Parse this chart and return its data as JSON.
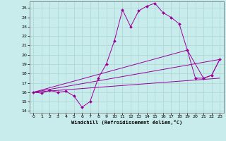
{
  "title": "",
  "xlabel": "Windchill (Refroidissement éolien,°C)",
  "bg_color": "#c8ecec",
  "line_color": "#990099",
  "grid_color": "#aad4d4",
  "xlim": [
    -0.5,
    23.5
  ],
  "ylim": [
    13.8,
    25.7
  ],
  "yticks": [
    14,
    15,
    16,
    17,
    18,
    19,
    20,
    21,
    22,
    23,
    24,
    25
  ],
  "xticks": [
    0,
    1,
    2,
    3,
    4,
    5,
    6,
    7,
    8,
    9,
    10,
    11,
    12,
    13,
    14,
    15,
    16,
    17,
    18,
    19,
    20,
    21,
    22,
    23
  ],
  "line1_x": [
    0,
    1,
    2,
    3,
    4,
    5,
    6,
    7,
    8,
    9,
    10,
    11,
    12,
    13,
    14,
    15,
    16,
    17,
    18,
    19,
    20,
    21,
    22,
    23
  ],
  "line1_y": [
    16.0,
    15.9,
    16.2,
    16.0,
    16.1,
    15.6,
    14.4,
    15.0,
    17.5,
    19.0,
    21.5,
    24.8,
    23.0,
    24.7,
    25.2,
    25.5,
    24.5,
    24.0,
    23.3,
    20.5,
    17.5,
    17.5,
    17.8,
    19.5
  ],
  "line2_x": [
    0,
    23
  ],
  "line2_y": [
    16.0,
    19.5
  ],
  "line3_x": [
    0,
    23
  ],
  "line3_y": [
    16.0,
    17.5
  ],
  "line4_x": [
    0,
    19,
    21,
    22,
    23
  ],
  "line4_y": [
    16.0,
    20.5,
    17.5,
    17.8,
    19.5
  ]
}
